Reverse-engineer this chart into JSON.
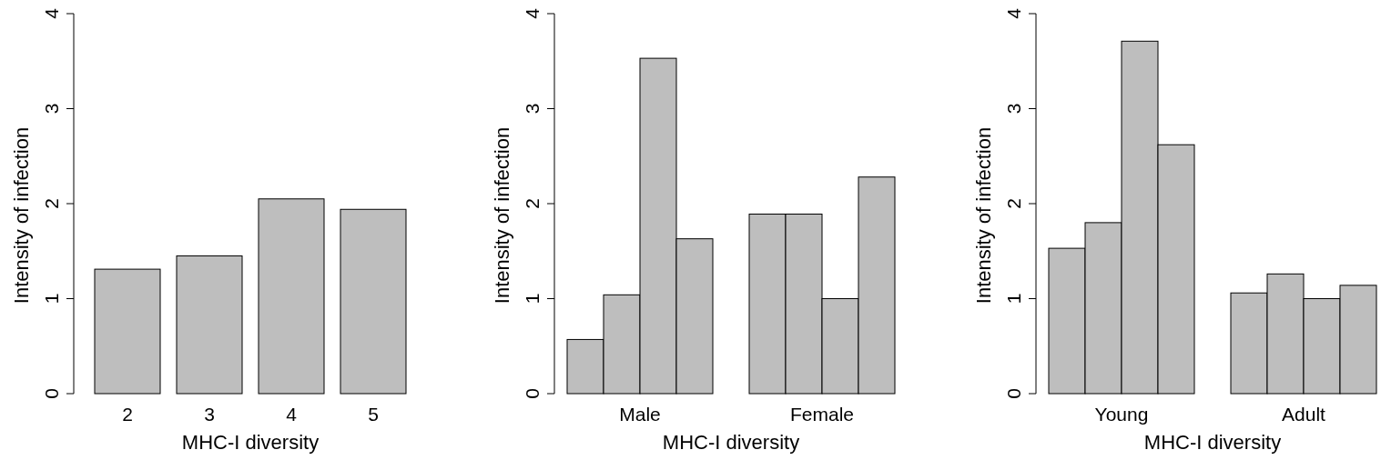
{
  "chart_data": [
    {
      "type": "bar",
      "xlabel": "MHC-I diversity",
      "ylabel": "Intensity of infection",
      "categories": [
        "2",
        "3",
        "4",
        "5"
      ],
      "values": [
        1.31,
        1.45,
        2.05,
        1.94
      ],
      "color": "#bebebe",
      "ylim": [
        0,
        4
      ],
      "yticks": [
        0,
        1,
        2,
        3,
        4
      ]
    },
    {
      "type": "bar",
      "xlabel": "MHC-I diversity",
      "ylabel": "Intensity of infection",
      "categories": [
        "Male",
        "Female"
      ],
      "series": [
        {
          "color": "#bebebe",
          "values": [
            0.57,
            1.89
          ]
        },
        {
          "color": "#bebebe",
          "values": [
            1.04,
            1.89
          ]
        },
        {
          "color": "#bebebe",
          "values": [
            3.53,
            1.0
          ]
        },
        {
          "color": "#bebebe",
          "values": [
            1.63,
            2.28
          ]
        }
      ],
      "ylim": [
        0,
        4
      ],
      "yticks": [
        0,
        1,
        2,
        3,
        4
      ]
    },
    {
      "type": "bar",
      "xlabel": "MHC-I diversity",
      "ylabel": "Intensity of infection",
      "categories": [
        "Young",
        "Adult"
      ],
      "series": [
        {
          "color": "#bebebe",
          "values": [
            1.53,
            1.06
          ]
        },
        {
          "color": "#bebebe",
          "values": [
            1.8,
            1.26
          ]
        },
        {
          "color": "#bebebe",
          "values": [
            3.71,
            1.0
          ]
        },
        {
          "color": "#bebebe",
          "values": [
            2.62,
            1.14
          ]
        }
      ],
      "ylim": [
        0,
        4
      ],
      "yticks": [
        0,
        1,
        2,
        3,
        4
      ]
    }
  ]
}
